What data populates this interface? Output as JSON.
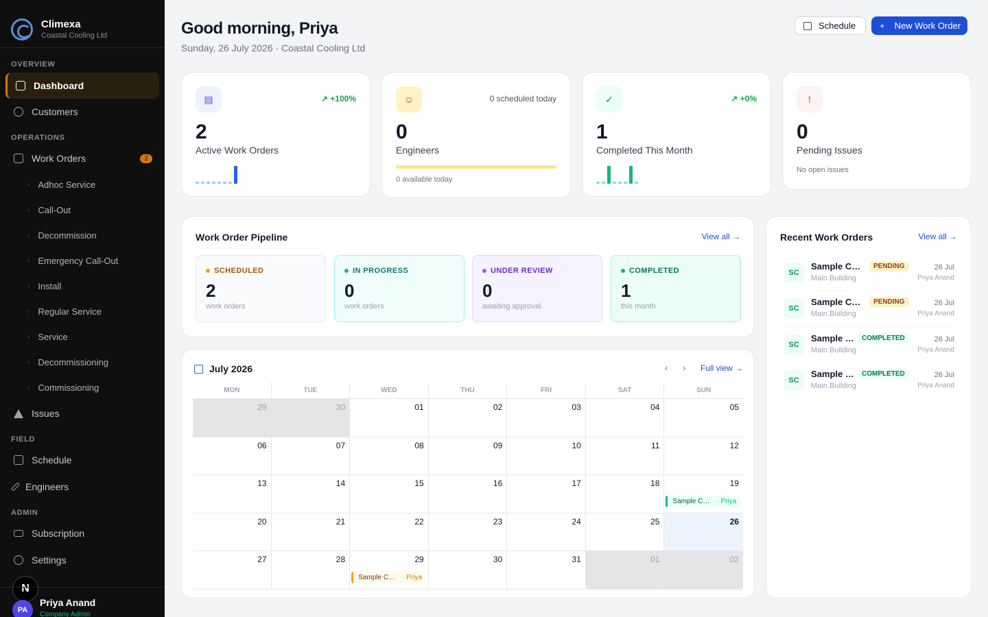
{
  "brand": {
    "name": "Climexa",
    "company": "Coastal Cooling Ltd"
  },
  "sidebar": {
    "sections": [
      "OVERVIEW",
      "OPERATIONS",
      "FIELD",
      "ADMIN"
    ],
    "items": {
      "dashboard": "Dashboard",
      "customers": "Customers",
      "work_orders": "Work Orders",
      "work_orders_count": "2",
      "issues": "Issues",
      "schedule": "Schedule",
      "engineers": "Engineers",
      "subscription": "Subscription",
      "settings": "Settings"
    },
    "work_order_types": [
      "Adhoc Service",
      "Call-Out",
      "Decommission",
      "Emergency Call-Out",
      "Install",
      "Regular Service",
      "Service",
      "Decommissioning",
      "Commissioning"
    ],
    "user": {
      "initials": "PA",
      "name": "Priya Anand",
      "role": "Company Admin"
    },
    "bubble": "N"
  },
  "header": {
    "greeting": "Good morning, Priya",
    "date_line": "Sunday, 26 July 2026 · Coastal Cooling Ltd",
    "schedule_btn": "Schedule",
    "new_wo_btn": "New Work Order"
  },
  "stats": [
    {
      "value": "2",
      "label": "Active Work Orders",
      "trend": "+100%",
      "spark": [
        1,
        1,
        1,
        1,
        1,
        1,
        1,
        9
      ]
    },
    {
      "value": "0",
      "label": "Engineers",
      "note": "0 scheduled today",
      "foot": "0 available today"
    },
    {
      "value": "1",
      "label": "Completed This Month",
      "trend": "+0%",
      "spark": [
        1,
        1,
        9,
        1,
        1,
        1,
        9,
        1
      ]
    },
    {
      "value": "0",
      "label": "Pending Issues",
      "foot": "No open issues"
    }
  ],
  "pipeline": {
    "title": "Work Order Pipeline",
    "view_all": "View all",
    "stages": [
      {
        "label": "SCHEDULED",
        "count": "2",
        "sub": "work orders"
      },
      {
        "label": "IN PROGRESS",
        "count": "0",
        "sub": "work orders"
      },
      {
        "label": "UNDER REVIEW",
        "count": "0",
        "sub": "awaiting approval"
      },
      {
        "label": "COMPLETED",
        "count": "1",
        "sub": "this month"
      }
    ]
  },
  "recent": {
    "title": "Recent Work Orders",
    "view_all": "View all",
    "items": [
      {
        "initials": "SC",
        "name": "Sample Customer",
        "site": "Main Building",
        "status": "PENDING",
        "date": "26 Jul",
        "engineer": "Priya Anand"
      },
      {
        "initials": "SC",
        "name": "Sample Customer",
        "site": "Main Building",
        "status": "PENDING",
        "date": "26 Jul",
        "engineer": "Priya Anand"
      },
      {
        "initials": "SC",
        "name": "Sample Customer",
        "site": "Main Building",
        "status": "COMPLETED",
        "date": "26 Jul",
        "engineer": "Priya Anand"
      },
      {
        "initials": "SC",
        "name": "Sample Customer",
        "site": "Main Building",
        "status": "COMPLETED",
        "date": "26 Jul",
        "engineer": "Priya Anand"
      }
    ]
  },
  "calendar": {
    "month": "July 2026",
    "full_view": "Full view",
    "prev": "‹",
    "next": "›",
    "days": [
      "MON",
      "TUE",
      "WED",
      "THU",
      "FRI",
      "SAT",
      "SUN"
    ],
    "cells": [
      "29",
      "30",
      "01",
      "02",
      "03",
      "04",
      "05",
      "06",
      "07",
      "08",
      "09",
      "10",
      "11",
      "12",
      "13",
      "14",
      "15",
      "16",
      "17",
      "18",
      "19",
      "20",
      "21",
      "22",
      "23",
      "24",
      "25",
      "26",
      "27",
      "28",
      "29",
      "30",
      "31",
      "01",
      "02"
    ],
    "events": [
      {
        "cell": 20,
        "name": "Sample Customer",
        "engineer": "· Priya",
        "kind": "completed"
      },
      {
        "cell": 30,
        "name": "Sample Customer",
        "engineer": "· Priya",
        "kind": "scheduled"
      }
    ]
  }
}
